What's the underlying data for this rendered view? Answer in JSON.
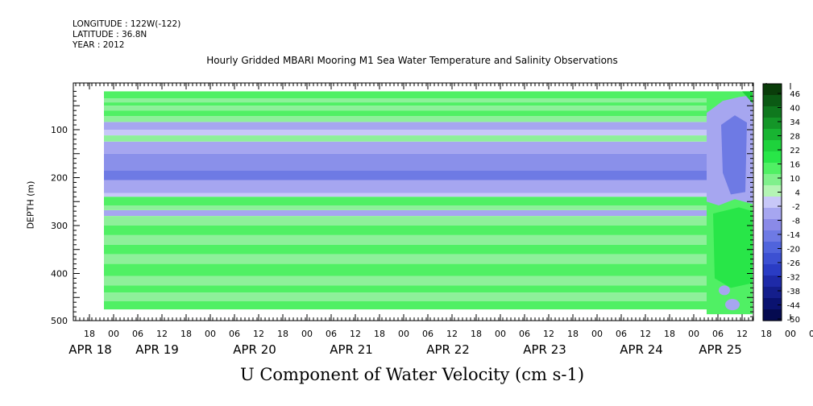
{
  "header": {
    "longitude": "LONGITUDE : 122W(-122)",
    "latitude": "LATITUDE : 36.8N",
    "year": "YEAR : 2012"
  },
  "chart_data": {
    "type": "heatmap",
    "title": "Hourly Gridded MBARI Mooring M1 Sea Water Temperature and Salinity Observations",
    "xlabel": "U Component of Water Velocity (cm s-1)",
    "ylabel": "DEPTH (m)",
    "ylim": [
      500,
      0
    ],
    "y_ticks": [
      100,
      200,
      300,
      400,
      500
    ],
    "x_hour_labels": [
      "18",
      "00",
      "06",
      "12",
      "18",
      "00",
      "06",
      "12",
      "18",
      "00",
      "06",
      "12",
      "18",
      "00",
      "06",
      "12",
      "18",
      "00",
      "06",
      "12",
      "18",
      "00",
      "06",
      "12",
      "18",
      "00",
      "06",
      "12",
      "18",
      "00",
      "06",
      "12"
    ],
    "x_day_labels": [
      "APR 18",
      "APR 19",
      "APR 20",
      "APR 21",
      "APR 22",
      "APR 23",
      "APR 24",
      "APR 25"
    ],
    "colorbar": {
      "labels": [
        46,
        40,
        34,
        28,
        22,
        16,
        10,
        4,
        -2,
        -8,
        -14,
        -20,
        -26,
        -32,
        -38,
        -44,
        -50
      ],
      "colors": [
        "#0a3d0a",
        "#0b5a14",
        "#0f781e",
        "#149628",
        "#18b432",
        "#1ed23c",
        "#28e648",
        "#50f064",
        "#80f08c",
        "#b4f4b4",
        "#c8c8f8",
        "#a6a6f0",
        "#8a8ae8",
        "#6e7ae4",
        "#5064dc",
        "#3c50d2",
        "#2a3cc4",
        "#1e2aa8",
        "#141e8c",
        "#0a1270",
        "#050a50"
      ]
    },
    "bands": [
      {
        "top": 20,
        "bottom": 35,
        "value": 10
      },
      {
        "top": 35,
        "bottom": 43,
        "value": 4
      },
      {
        "top": 43,
        "bottom": 50,
        "value": 10
      },
      {
        "top": 50,
        "bottom": 60,
        "value": 4
      },
      {
        "top": 60,
        "bottom": 72,
        "value": 10
      },
      {
        "top": 72,
        "bottom": 84,
        "value": 4
      },
      {
        "top": 84,
        "bottom": 100,
        "value": -8
      },
      {
        "top": 100,
        "bottom": 112,
        "value": -2
      },
      {
        "top": 112,
        "bottom": 125,
        "value": 4
      },
      {
        "top": 125,
        "bottom": 150,
        "value": -8
      },
      {
        "top": 150,
        "bottom": 185,
        "value": -14
      },
      {
        "top": 185,
        "bottom": 205,
        "value": -20
      },
      {
        "top": 205,
        "bottom": 232,
        "value": -8
      },
      {
        "top": 232,
        "bottom": 240,
        "value": -2
      },
      {
        "top": 240,
        "bottom": 258,
        "value": 10
      },
      {
        "top": 258,
        "bottom": 268,
        "value": 4
      },
      {
        "top": 268,
        "bottom": 280,
        "value": -8
      },
      {
        "top": 280,
        "bottom": 300,
        "value": 4
      },
      {
        "top": 300,
        "bottom": 320,
        "value": 10
      },
      {
        "top": 320,
        "bottom": 340,
        "value": 4
      },
      {
        "top": 340,
        "bottom": 360,
        "value": 10
      },
      {
        "top": 360,
        "bottom": 380,
        "value": 4
      },
      {
        "top": 380,
        "bottom": 405,
        "value": 10
      },
      {
        "top": 405,
        "bottom": 425,
        "value": 4
      },
      {
        "top": 425,
        "bottom": 440,
        "value": 10
      },
      {
        "top": 440,
        "bottom": 458,
        "value": 4
      },
      {
        "top": 458,
        "bottom": 475,
        "value": 10
      }
    ]
  }
}
